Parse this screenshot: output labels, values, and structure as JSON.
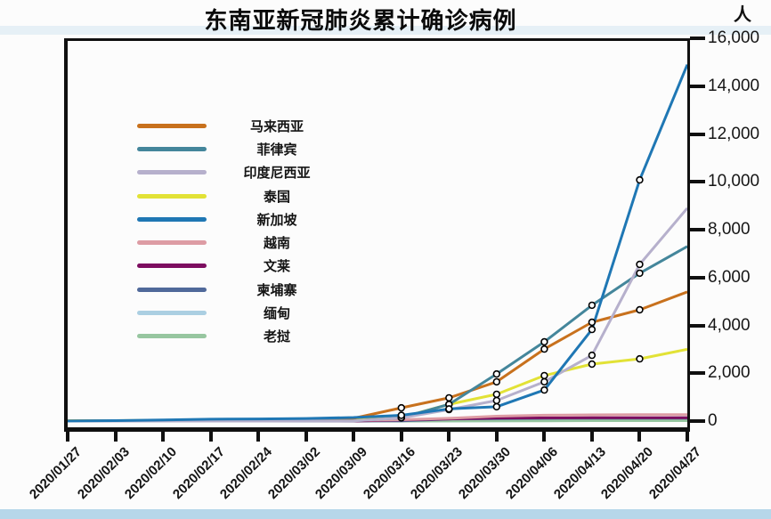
{
  "title": "东南亚新冠肺炎累计确诊病例",
  "y_axis": {
    "unit": "人",
    "tick_labels": [
      "0",
      "2,000",
      "4,000",
      "6,000",
      "8,000",
      "10,000",
      "12,000",
      "14,000",
      "16,000"
    ]
  },
  "chart_data": {
    "type": "line",
    "title": "东南亚新冠肺炎累计确诊病例",
    "xlabel": "",
    "ylabel": "人",
    "ylim": [
      0,
      16000
    ],
    "ytick_step": 2000,
    "grid": false,
    "legend_position": "upper left",
    "x": [
      "2020/01/27",
      "2020/02/03",
      "2020/02/10",
      "2020/02/17",
      "2020/02/24",
      "2020/03/02",
      "2020/03/09",
      "2020/03/16",
      "2020/03/23",
      "2020/03/30",
      "2020/04/06",
      "2020/04/13",
      "2020/04/20",
      "2020/04/27"
    ],
    "series": [
      {
        "name": "马来西亚",
        "color": "#c8711d",
        "values": [
          4,
          8,
          18,
          22,
          22,
          29,
          117,
          553,
          970,
          1640,
          3010,
          4130,
          4650,
          5400
        ],
        "markers": true
      },
      {
        "name": "菲律宾",
        "color": "#44869b",
        "values": [
          1,
          2,
          3,
          3,
          3,
          3,
          10,
          140,
          700,
          1970,
          3310,
          4840,
          6180,
          7300
        ],
        "markers": true
      },
      {
        "name": "印度尼西亚",
        "color": "#b6b0cc",
        "values": [
          0,
          0,
          0,
          0,
          0,
          2,
          6,
          134,
          480,
          860,
          1640,
          2750,
          6550,
          8900
        ],
        "markers": true
      },
      {
        "name": "泰国",
        "color": "#e2e236",
        "values": [
          14,
          19,
          32,
          35,
          35,
          43,
          50,
          147,
          700,
          1120,
          1900,
          2380,
          2600,
          3000
        ],
        "markers": true
      },
      {
        "name": "新加坡",
        "color": "#1f77b4",
        "values": [
          4,
          18,
          45,
          77,
          90,
          108,
          150,
          243,
          510,
          600,
          1300,
          3830,
          10080,
          14900
        ],
        "markers": true
      },
      {
        "name": "越南",
        "color": "#dd9ca4",
        "values": [
          2,
          8,
          14,
          16,
          16,
          16,
          30,
          57,
          116,
          203,
          245,
          262,
          268,
          270
        ],
        "markers": false
      },
      {
        "name": "文莱",
        "color": "#7d0d60",
        "values": [
          0,
          0,
          0,
          0,
          0,
          0,
          1,
          50,
          91,
          126,
          135,
          136,
          138,
          138
        ],
        "markers": false
      },
      {
        "name": "柬埔寨",
        "color": "#50699a",
        "values": [
          1,
          1,
          1,
          1,
          1,
          1,
          2,
          7,
          84,
          103,
          114,
          122,
          122,
          122
        ],
        "markers": false
      },
      {
        "name": "缅甸",
        "color": "#abcfe2",
        "values": [
          0,
          0,
          0,
          0,
          0,
          0,
          0,
          0,
          2,
          8,
          21,
          62,
          111,
          146
        ],
        "markers": false
      },
      {
        "name": "老挝",
        "color": "#97c6a0",
        "values": [
          0,
          0,
          0,
          0,
          0,
          0,
          0,
          0,
          2,
          8,
          12,
          19,
          19,
          19
        ],
        "markers": false
      }
    ],
    "marker_index_range": [
      7,
      12
    ]
  }
}
